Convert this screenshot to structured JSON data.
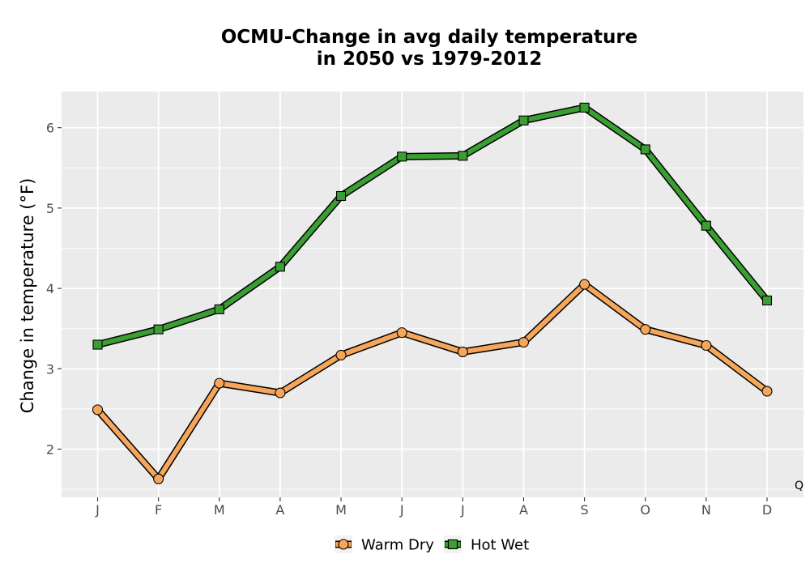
{
  "chart_data": {
    "type": "line",
    "title_line1": "OCMU-Change in avg daily temperature",
    "title_line2": "in 2050 vs 1979-2012",
    "xlabel": "",
    "ylabel": "Change in temperature (°F)",
    "categories": [
      "J",
      "F",
      "M",
      "A",
      "M",
      "J",
      "J",
      "A",
      "S",
      "O",
      "N",
      "D"
    ],
    "yticks": [
      2,
      3,
      4,
      5,
      6
    ],
    "ylim": [
      1.4,
      6.45
    ],
    "grid": true,
    "legend_position": "bottom",
    "corner_note": "Q",
    "series": [
      {
        "name": "Warm Dry",
        "marker": "circle",
        "color": "#f5a65b",
        "values": [
          2.49,
          1.63,
          2.82,
          2.7,
          3.17,
          3.45,
          3.21,
          3.33,
          4.05,
          3.49,
          3.29,
          2.72
        ]
      },
      {
        "name": "Hot Wet",
        "marker": "square",
        "color": "#3a9e33",
        "values": [
          3.3,
          3.49,
          3.74,
          4.27,
          5.15,
          5.64,
          5.65,
          6.09,
          6.25,
          5.73,
          4.78,
          3.85
        ]
      }
    ],
    "colors": {
      "panel_background": "#ebebeb",
      "grid_line": "#ffffff",
      "outline": "#000000"
    }
  }
}
